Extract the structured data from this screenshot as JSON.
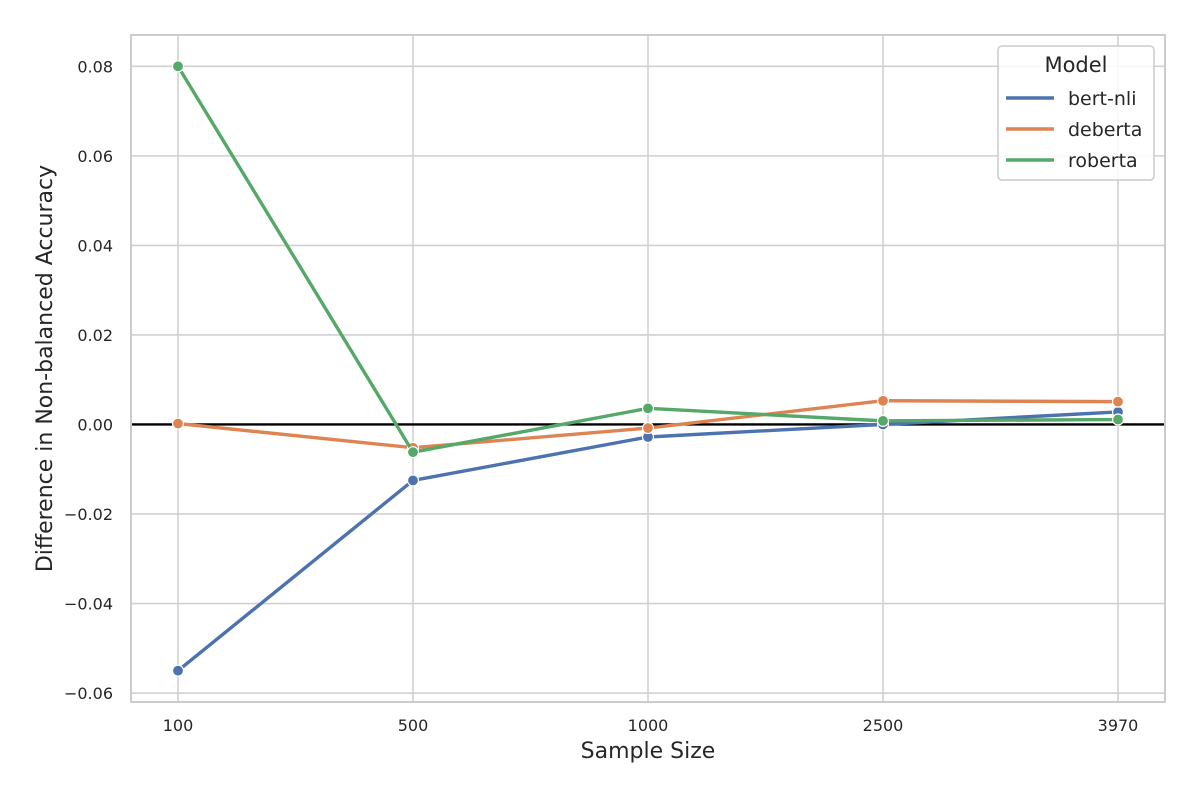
{
  "chart_data": {
    "type": "line",
    "xlabel": "Sample Size",
    "ylabel": "Difference in Non-balanced Accuracy",
    "categories": [
      "100",
      "500",
      "1000",
      "2500",
      "3970"
    ],
    "ylim": [
      -0.062,
      0.087
    ],
    "yticks": [
      0.08,
      0.06,
      0.04,
      0.02,
      0.0,
      -0.02,
      -0.04,
      -0.06
    ],
    "ytick_labels": [
      "0.08",
      "0.06",
      "0.04",
      "0.02",
      "0.00",
      "−0.02",
      "−0.04",
      "−0.06"
    ],
    "reference_line": 0,
    "grid": true,
    "legend": {
      "title": "Model",
      "placement": "top-right"
    },
    "series": [
      {
        "name": "bert-nli",
        "color": "#4c72b0",
        "values": [
          -0.055,
          -0.0125,
          -0.0028,
          0.0,
          0.0028
        ]
      },
      {
        "name": "deberta",
        "color": "#dd8452",
        "values": [
          0.0002,
          -0.0052,
          -0.0008,
          0.0053,
          0.0051
        ]
      },
      {
        "name": "roberta",
        "color": "#55a868",
        "values": [
          0.08,
          -0.0062,
          0.0036,
          0.0008,
          0.0011
        ]
      }
    ]
  }
}
